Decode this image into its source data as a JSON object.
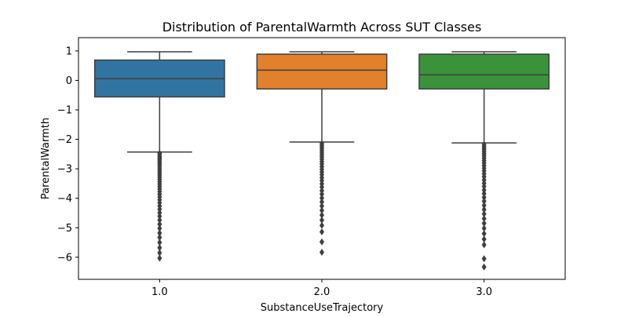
{
  "chart_data": {
    "type": "box",
    "title": "Distribution of ParentalWarmth Across SUT Classes",
    "xlabel": "SubstanceUseTrajectory",
    "ylabel": "ParentalWarmth",
    "categories": [
      "1.0",
      "2.0",
      "3.0"
    ],
    "ylim": [
      -6.75,
      1.45
    ],
    "yticks": [
      1,
      0,
      -1,
      -2,
      -3,
      -4,
      -5,
      -6
    ],
    "ytick_labels": [
      "1",
      "0",
      "−1",
      "−2",
      "−3",
      "−4",
      "−5",
      "−6"
    ],
    "grid": false,
    "legend": "none",
    "colors": [
      "#3274a1",
      "#e1812c",
      "#3a923a"
    ],
    "boxes": [
      {
        "category": "1.0",
        "whisker_high": 0.97,
        "q3": 0.69,
        "median": 0.06,
        "q1": -0.56,
        "whisker_low": -2.43,
        "outliers": [
          -2.47,
          -2.52,
          -2.58,
          -2.63,
          -2.68,
          -2.74,
          -2.8,
          -2.86,
          -2.93,
          -3.0,
          -3.07,
          -3.14,
          -3.21,
          -3.28,
          -3.36,
          -3.44,
          -3.52,
          -3.6,
          -3.68,
          -3.77,
          -3.86,
          -3.95,
          -4.05,
          -4.15,
          -4.26,
          -4.37,
          -4.49,
          -4.61,
          -4.74,
          -4.88,
          -5.02,
          -5.18,
          -5.33,
          -5.5,
          -5.68,
          -5.85,
          -6.03
        ]
      },
      {
        "category": "2.0",
        "whisker_high": 0.97,
        "q3": 0.89,
        "median": 0.35,
        "q1": -0.29,
        "whisker_low": -2.09,
        "outliers": [
          -2.14,
          -2.2,
          -2.26,
          -2.32,
          -2.39,
          -2.46,
          -2.53,
          -2.6,
          -2.68,
          -2.76,
          -2.84,
          -2.93,
          -3.02,
          -3.11,
          -3.2,
          -3.3,
          -3.4,
          -3.51,
          -3.62,
          -3.74,
          -3.86,
          -3.99,
          -4.12,
          -4.26,
          -4.41,
          -4.57,
          -4.74,
          -4.92,
          -5.14,
          -5.48,
          -5.83
        ]
      },
      {
        "category": "3.0",
        "whisker_high": 0.97,
        "q3": 0.89,
        "median": 0.19,
        "q1": -0.29,
        "whisker_low": -2.12,
        "outliers": [
          -2.17,
          -2.23,
          -2.29,
          -2.35,
          -2.42,
          -2.49,
          -2.56,
          -2.64,
          -2.72,
          -2.8,
          -2.89,
          -2.98,
          -3.07,
          -3.17,
          -3.27,
          -3.38,
          -3.49,
          -3.6,
          -3.72,
          -3.84,
          -3.97,
          -4.1,
          -4.24,
          -4.38,
          -4.53,
          -4.69,
          -4.85,
          -5.02,
          -5.2,
          -5.39,
          -5.58,
          -6.05,
          -6.33
        ]
      }
    ]
  }
}
